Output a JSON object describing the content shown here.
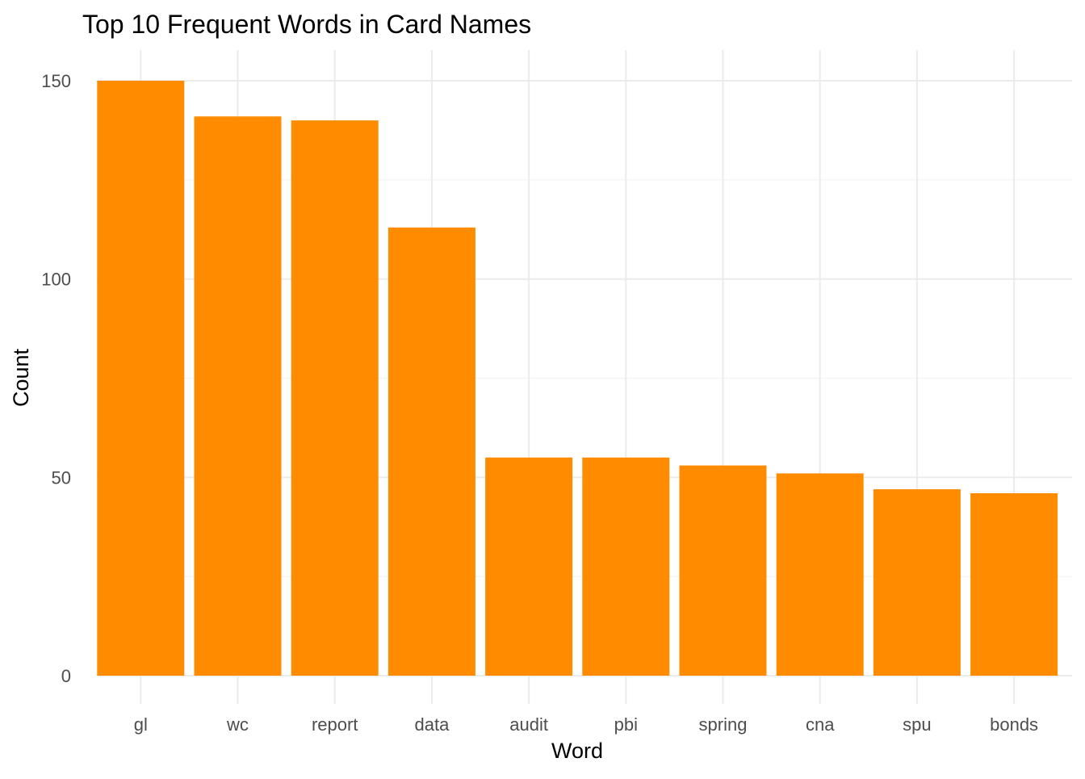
{
  "chart_data": {
    "type": "bar",
    "title": "Top 10 Frequent Words in Card Names",
    "xlabel": "Word",
    "ylabel": "Count",
    "categories": [
      "gl",
      "wc",
      "report",
      "data",
      "audit",
      "pbi",
      "spring",
      "cna",
      "spu",
      "bonds"
    ],
    "values": [
      150,
      141,
      140,
      113,
      55,
      55,
      53,
      51,
      47,
      46
    ],
    "ylim": [
      0,
      157.5
    ],
    "yticks": [
      0,
      50,
      100,
      150
    ],
    "grid": true,
    "legend": "none",
    "bar_color": "#FF8C00"
  }
}
